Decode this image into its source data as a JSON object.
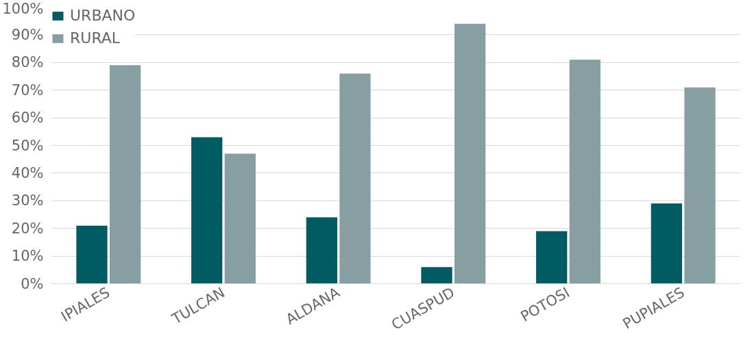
{
  "chart_data": {
    "type": "bar",
    "categories": [
      "IPIALES",
      "TULCAN",
      "ALDANA",
      "CUASPUD",
      "POTOSI",
      "PUPIALES"
    ],
    "series": [
      {
        "name": "URBANO",
        "color": "#005c62",
        "values": [
          21,
          53,
          24,
          6,
          19,
          29
        ]
      },
      {
        "name": "RURAL",
        "color": "#879fa3",
        "values": [
          79,
          47,
          76,
          94,
          81,
          71
        ]
      }
    ],
    "ylim": [
      0,
      100
    ],
    "yticks": [
      {
        "value": 0,
        "label": "0%"
      },
      {
        "value": 10,
        "label": "10%"
      },
      {
        "value": 20,
        "label": "20%"
      },
      {
        "value": 30,
        "label": "30%"
      },
      {
        "value": 40,
        "label": "40%"
      },
      {
        "value": 50,
        "label": "50%"
      },
      {
        "value": 60,
        "label": "60%"
      },
      {
        "value": 70,
        "label": "70%"
      },
      {
        "value": 80,
        "label": "80%"
      },
      {
        "value": 90,
        "label": "90%"
      },
      {
        "value": 100,
        "label": "100%"
      }
    ],
    "grid": "y",
    "legend": "top left"
  }
}
